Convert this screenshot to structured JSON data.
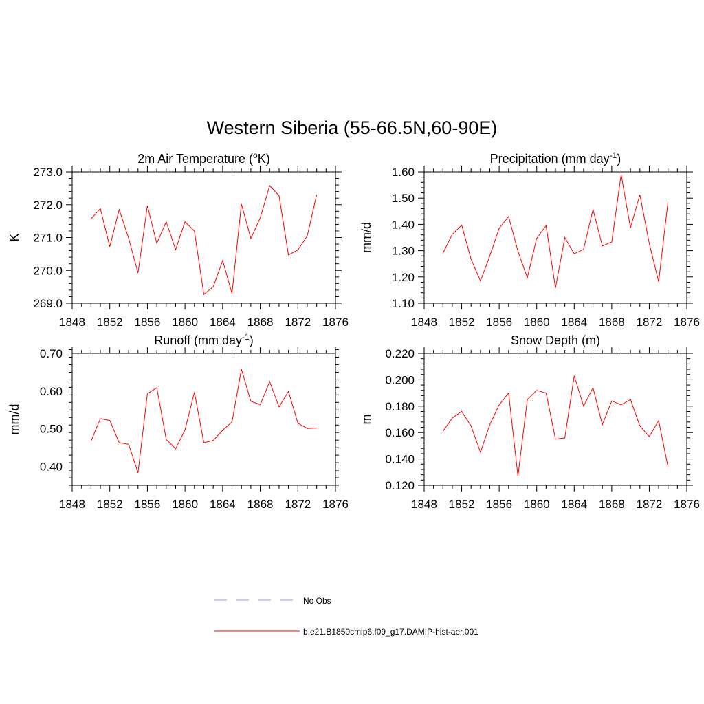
{
  "title": "Western Siberia (55-66.5N,60-90E)",
  "line_color": "#ff0000",
  "chart_data": [
    {
      "type": "line",
      "panel": "top-left",
      "title": "2m Air Temperature (",
      "title_sup": "o",
      "title_suffix": "K)",
      "ylabel": "K",
      "xlim": [
        1848,
        1876
      ],
      "ylim": [
        269.0,
        273.0
      ],
      "x_ticks": [
        1848,
        1852,
        1856,
        1860,
        1864,
        1868,
        1872,
        1876
      ],
      "y_ticks": [
        "269.0",
        "270.0",
        "271.0",
        "272.0",
        "273.0"
      ],
      "y_minor_step": 0.2,
      "x": [
        1850,
        1851,
        1852,
        1853,
        1854,
        1855,
        1856,
        1857,
        1858,
        1859,
        1860,
        1861,
        1862,
        1863,
        1864,
        1865,
        1866,
        1867,
        1868,
        1869,
        1870,
        1871,
        1872,
        1873,
        1874
      ],
      "series": [
        {
          "name": "b.e21.B1850cmip6.f09_g17.DAMIP-hist-aer.001",
          "values": [
            271.57,
            271.88,
            270.72,
            271.85,
            270.98,
            269.92,
            271.97,
            270.82,
            271.48,
            270.63,
            271.48,
            271.2,
            269.27,
            269.5,
            270.3,
            269.3,
            272.02,
            270.97,
            271.6,
            272.58,
            272.28,
            270.47,
            270.62,
            271.05,
            272.3
          ]
        }
      ]
    },
    {
      "type": "line",
      "panel": "top-right",
      "title": "Precipitation (mm day",
      "title_sup": "-1",
      "title_suffix": ")",
      "ylabel": "mm/d",
      "xlim": [
        1848,
        1876
      ],
      "ylim": [
        1.1,
        1.6
      ],
      "x_ticks": [
        1848,
        1852,
        1856,
        1860,
        1864,
        1868,
        1872,
        1876
      ],
      "y_ticks": [
        "1.10",
        "1.20",
        "1.30",
        "1.40",
        "1.50",
        "1.60"
      ],
      "y_minor_step": 0.02,
      "x": [
        1850,
        1851,
        1852,
        1853,
        1854,
        1855,
        1856,
        1857,
        1858,
        1859,
        1860,
        1861,
        1862,
        1863,
        1864,
        1865,
        1866,
        1867,
        1868,
        1869,
        1870,
        1871,
        1872,
        1873,
        1874
      ],
      "series": [
        {
          "name": "b.e21.B1850cmip6.f09_g17.DAMIP-hist-aer.001",
          "values": [
            1.29,
            1.362,
            1.397,
            1.268,
            1.185,
            1.28,
            1.385,
            1.43,
            1.298,
            1.197,
            1.347,
            1.395,
            1.158,
            1.35,
            1.288,
            1.305,
            1.457,
            1.318,
            1.333,
            1.59,
            1.387,
            1.513,
            1.328,
            1.182,
            1.487
          ]
        }
      ]
    },
    {
      "type": "line",
      "panel": "bottom-left",
      "title": "Runoff (mm day",
      "title_sup": "-1",
      "title_suffix": ")",
      "ylabel": "mm/d",
      "xlim": [
        1848,
        1876
      ],
      "ylim": [
        0.35,
        0.7
      ],
      "x_ticks": [
        1848,
        1852,
        1856,
        1860,
        1864,
        1868,
        1872,
        1876
      ],
      "y_ticks": [
        "0.40",
        "0.50",
        "0.60",
        "0.70"
      ],
      "y_minor_step": 0.02,
      "x": [
        1850,
        1851,
        1852,
        1853,
        1854,
        1855,
        1856,
        1857,
        1858,
        1859,
        1860,
        1861,
        1862,
        1863,
        1864,
        1865,
        1866,
        1867,
        1868,
        1869,
        1870,
        1871,
        1872,
        1873,
        1874
      ],
      "series": [
        {
          "name": "b.e21.B1850cmip6.f09_g17.DAMIP-hist-aer.001",
          "values": [
            0.467,
            0.527,
            0.522,
            0.463,
            0.459,
            0.383,
            0.593,
            0.609,
            0.472,
            0.447,
            0.497,
            0.597,
            0.463,
            0.469,
            0.496,
            0.518,
            0.658,
            0.573,
            0.564,
            0.625,
            0.558,
            0.599,
            0.515,
            0.501,
            0.502
          ]
        }
      ]
    },
    {
      "type": "line",
      "panel": "bottom-right",
      "title": "Snow Depth (m)",
      "title_sup": "",
      "title_suffix": "",
      "ylabel": "m",
      "xlim": [
        1848,
        1876
      ],
      "ylim": [
        0.12,
        0.22
      ],
      "x_ticks": [
        1848,
        1852,
        1856,
        1860,
        1864,
        1868,
        1872,
        1876
      ],
      "y_ticks": [
        "0.120",
        "0.140",
        "0.160",
        "0.180",
        "0.200",
        "0.220"
      ],
      "y_minor_step": 0.004,
      "x": [
        1850,
        1851,
        1852,
        1853,
        1854,
        1855,
        1856,
        1857,
        1858,
        1859,
        1860,
        1861,
        1862,
        1863,
        1864,
        1865,
        1866,
        1867,
        1868,
        1869,
        1870,
        1871,
        1872,
        1873,
        1874
      ],
      "series": [
        {
          "name": "b.e21.B1850cmip6.f09_g17.DAMIP-hist-aer.001",
          "values": [
            0.161,
            0.171,
            0.176,
            0.165,
            0.145,
            0.166,
            0.181,
            0.19,
            0.127,
            0.185,
            0.192,
            0.19,
            0.155,
            0.156,
            0.203,
            0.18,
            0.194,
            0.166,
            0.184,
            0.181,
            0.185,
            0.165,
            0.157,
            0.169,
            0.134
          ]
        }
      ]
    }
  ],
  "legend": [
    {
      "label": "No Obs",
      "color": "#9999ff",
      "dash": true
    },
    {
      "label": "b.e21.B1850cmip6.f09_g17.DAMIP-hist-aer.001",
      "color": "#ff0000",
      "dash": false
    }
  ]
}
